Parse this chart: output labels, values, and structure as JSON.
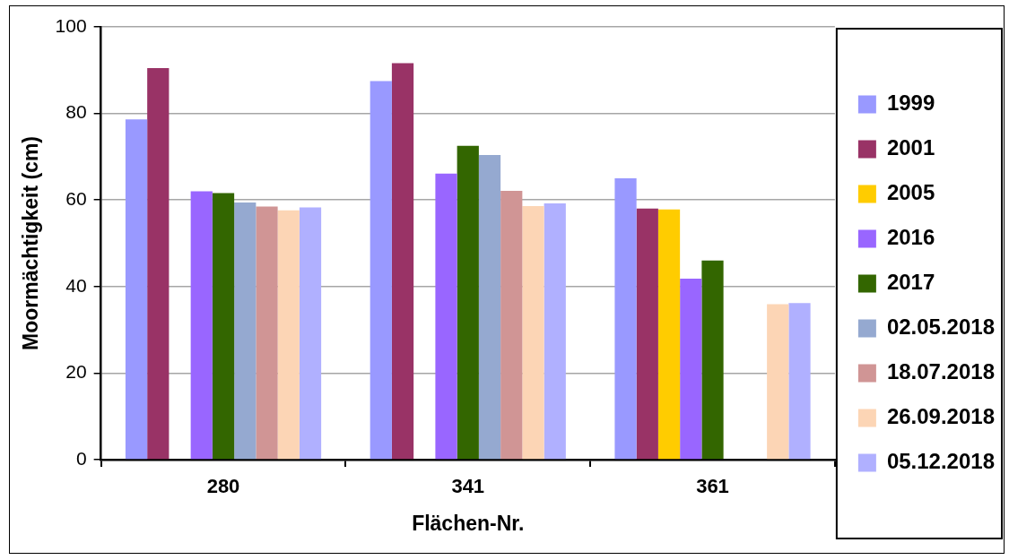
{
  "chart_data": {
    "type": "bar",
    "xlabel": "Flächen-Nr.",
    "ylabel": "Moormächtigkeit (cm)",
    "categories": [
      "280",
      "341",
      "361"
    ],
    "series": [
      {
        "name": "1999",
        "color": "#9999ff",
        "values": [
          78.6,
          87.5,
          65.0
        ]
      },
      {
        "name": "2001",
        "color": "#993366",
        "values": [
          90.5,
          91.6,
          58.0
        ]
      },
      {
        "name": "2005",
        "color": "#ffcc00",
        "values": [
          null,
          null,
          57.8
        ]
      },
      {
        "name": "2016",
        "color": "#9966ff",
        "values": [
          62.0,
          66.1,
          41.8
        ]
      },
      {
        "name": "2017",
        "color": "#336600",
        "values": [
          61.6,
          72.5,
          46.0
        ]
      },
      {
        "name": "02.05.2018",
        "color": "#95a9d0",
        "values": [
          59.4,
          70.4,
          null
        ]
      },
      {
        "name": "18.07.2018",
        "color": "#d09595",
        "values": [
          58.5,
          62.1,
          null
        ]
      },
      {
        "name": "26.09.2018",
        "color": "#fcd5b5",
        "values": [
          57.6,
          58.6,
          35.9
        ]
      },
      {
        "name": "05.12.2018",
        "color": "#b0b0ff",
        "values": [
          58.3,
          59.2,
          36.2
        ]
      }
    ],
    "ylim": [
      0,
      100
    ],
    "yticks": [
      0,
      20,
      40,
      60,
      80,
      100
    ],
    "grid": "y",
    "legend": "right"
  }
}
